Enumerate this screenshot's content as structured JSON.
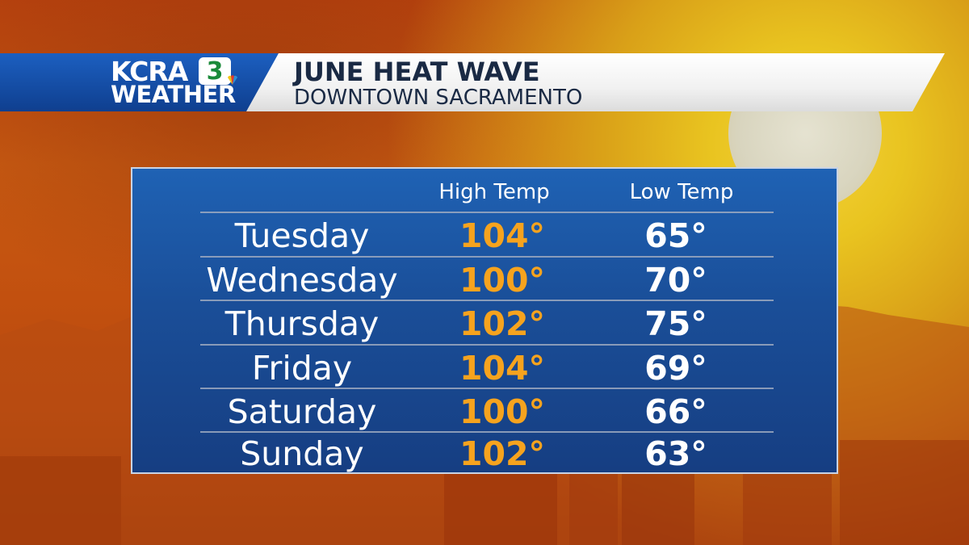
{
  "brand": {
    "station": "KCRA",
    "channel_number": "3",
    "section": "WEATHER"
  },
  "header": {
    "title": "JUNE HEAT WAVE",
    "subtitle": "DOWNTOWN SACRAMENTO"
  },
  "table": {
    "columns": [
      "High Temp",
      "Low Temp"
    ],
    "rows": [
      {
        "day": "Tuesday",
        "high": "104°",
        "low": "65°"
      },
      {
        "day": "Wednesday",
        "high": "100°",
        "low": "70°"
      },
      {
        "day": "Thursday",
        "high": "102°",
        "low": "75°"
      },
      {
        "day": "Friday",
        "high": "104°",
        "low": "69°"
      },
      {
        "day": "Saturday",
        "high": "100°",
        "low": "66°"
      },
      {
        "day": "Sunday",
        "high": "102°",
        "low": "63°"
      }
    ]
  },
  "colors": {
    "high_temp": "#f6a31e",
    "low_temp": "#ffffff",
    "panel_blue": "#1a4e98",
    "logo_green": "#1a8a3a"
  },
  "icons": [
    "sun-graphic",
    "nbc-peacock-icon"
  ]
}
